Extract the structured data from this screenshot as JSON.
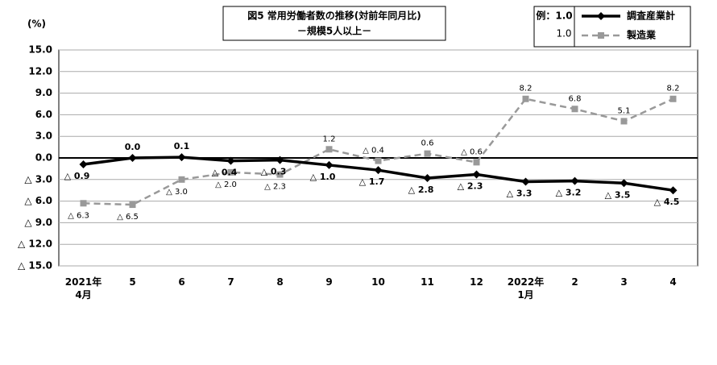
{
  "chart_data": {
    "type": "line",
    "title": "図5  常用労働者数の推移(対前年同月比)",
    "subtitle": "－規模5人以上－",
    "y_label": "(%)",
    "legend_example": [
      "例：1.0",
      "1.0"
    ],
    "categories": [
      "2021年\n4月",
      "5",
      "6",
      "7",
      "8",
      "9",
      "10",
      "11",
      "12",
      "2022年\n1月",
      "2",
      "3",
      "4"
    ],
    "series": [
      {
        "name": "調査産業計",
        "color": "#000000",
        "dashed": false,
        "marker": "diamond",
        "values": [
          -0.9,
          0.0,
          0.1,
          -0.4,
          -0.3,
          -1.0,
          -1.7,
          -2.8,
          -2.3,
          -3.3,
          -3.2,
          -3.5,
          -4.5
        ],
        "value_labels": [
          "△ 0.9",
          "0.0",
          "0.1",
          "△ 0.4",
          "△ 0.3",
          "△ 1.0",
          "△ 1.7",
          "△ 2.8",
          "△ 2.3",
          "△ 3.3",
          "△ 3.2",
          "△ 3.5",
          "△ 4.5"
        ]
      },
      {
        "name": "製造業",
        "color": "#999999",
        "dashed": true,
        "marker": "square",
        "values": [
          -6.3,
          -6.5,
          -3.0,
          -2.0,
          -2.3,
          1.2,
          -0.4,
          0.6,
          -0.6,
          8.2,
          6.8,
          5.1,
          8.2
        ],
        "value_labels": [
          "△ 6.3",
          "△ 6.5",
          "△ 3.0",
          "△ 2.0",
          "△ 2.3",
          "1.2",
          "△ 0.4",
          "0.6",
          "△ 0.6",
          "8.2",
          "6.8",
          "5.1",
          "8.2"
        ]
      }
    ],
    "ylim": [
      -15,
      15
    ],
    "yticks": [
      {
        "value": 15,
        "label": "15.0"
      },
      {
        "value": 12,
        "label": "12.0"
      },
      {
        "value": 9,
        "label": "9.0"
      },
      {
        "value": 6,
        "label": "6.0"
      },
      {
        "value": 3,
        "label": "3.0"
      },
      {
        "value": 0,
        "label": "0.0"
      },
      {
        "value": -3,
        "label": "△ 3.0"
      },
      {
        "value": -6,
        "label": "△ 6.0"
      },
      {
        "value": -9,
        "label": "△ 9.0"
      },
      {
        "value": -12,
        "label": "△ 12.0"
      },
      {
        "value": -15,
        "label": "△ 15.0"
      }
    ],
    "grid": true
  }
}
